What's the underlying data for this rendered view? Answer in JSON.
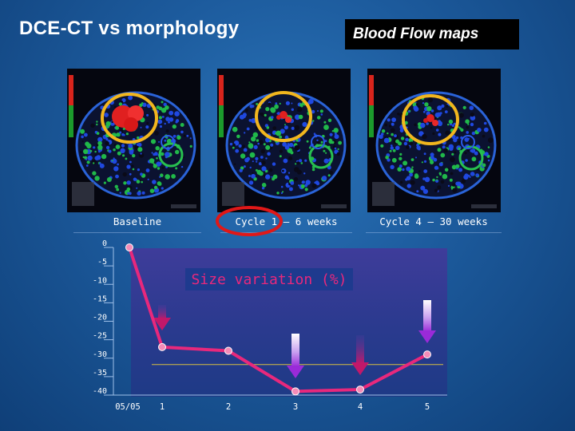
{
  "header": {
    "title": "DCE-CT vs morphology",
    "badge": "Blood Flow maps"
  },
  "scans": [
    {
      "caption": "Baseline"
    },
    {
      "caption": "Cycle 1 – 6 weeks"
    },
    {
      "caption": "Cycle 4 – 30 weeks"
    }
  ],
  "colors": {
    "series": "#e8287c",
    "ring": "#f2b61e",
    "highlight_ring": "#e01818",
    "arrow_magenta": "#c2186a",
    "arrow_violet": "#9a2ad8",
    "zero_line": "#d8c040"
  },
  "chart_data": {
    "type": "line",
    "title": "Size variation (%)",
    "xlabel": "",
    "ylabel": "",
    "categories": [
      "05/05",
      "1",
      "2",
      "3",
      "4",
      "5"
    ],
    "y_ticks": [
      "0",
      "-5",
      "-10",
      "-15",
      "-20",
      "-25",
      "-30",
      "-35",
      "-40"
    ],
    "ylim": [
      -40,
      0
    ],
    "series": [
      {
        "values": [
          0,
          -27,
          -28,
          -39,
          -38.5,
          -29
        ]
      }
    ],
    "markers": [
      {
        "category": "1",
        "style": "magenta-arrow"
      },
      {
        "category": "3",
        "style": "violet-arrow"
      },
      {
        "category": "4",
        "style": "magenta-arrow"
      },
      {
        "category": "5",
        "style": "violet-arrow"
      }
    ],
    "grid": false,
    "legend": "none"
  }
}
